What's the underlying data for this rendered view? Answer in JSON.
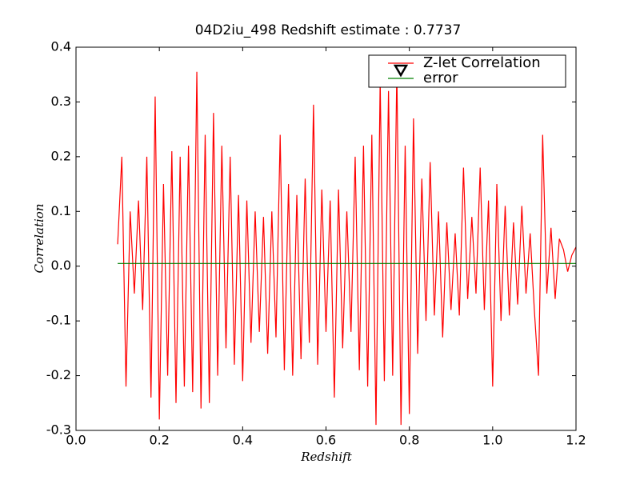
{
  "chart_data": {
    "type": "line",
    "title": "04D2iu_498 Redshift estimate : 0.7737",
    "xlabel": "Redshift",
    "ylabel": "Correlation",
    "x": [
      0.1,
      0.11,
      0.12,
      0.13,
      0.14,
      0.15,
      0.16,
      0.17,
      0.18,
      0.19,
      0.2,
      0.21,
      0.22,
      0.23,
      0.24,
      0.25,
      0.26,
      0.27,
      0.28,
      0.29,
      0.3,
      0.31,
      0.32,
      0.33,
      0.34,
      0.35,
      0.36,
      0.37,
      0.38,
      0.39,
      0.4,
      0.41,
      0.42,
      0.43,
      0.44,
      0.45,
      0.46,
      0.47,
      0.48,
      0.49,
      0.5,
      0.51,
      0.52,
      0.53,
      0.54,
      0.55,
      0.56,
      0.57,
      0.58,
      0.59,
      0.6,
      0.61,
      0.62,
      0.63,
      0.64,
      0.65,
      0.66,
      0.67,
      0.68,
      0.69,
      0.7,
      0.71,
      0.72,
      0.73,
      0.74,
      0.75,
      0.76,
      0.77,
      0.78,
      0.79,
      0.8,
      0.81,
      0.82,
      0.83,
      0.84,
      0.85,
      0.86,
      0.87,
      0.88,
      0.89,
      0.9,
      0.91,
      0.92,
      0.93,
      0.94,
      0.95,
      0.96,
      0.97,
      0.98,
      0.99,
      1.0,
      1.01,
      1.02,
      1.03,
      1.04,
      1.05,
      1.06,
      1.07,
      1.08,
      1.09,
      1.1,
      1.11,
      1.12,
      1.13,
      1.14,
      1.15,
      1.16,
      1.17,
      1.18,
      1.19,
      1.2
    ],
    "series": [
      {
        "name": "Z-let Correlation",
        "color": "#ff0000",
        "values": [
          0.04,
          0.2,
          -0.22,
          0.1,
          -0.05,
          0.12,
          -0.08,
          0.2,
          -0.24,
          0.31,
          -0.28,
          0.15,
          -0.2,
          0.21,
          -0.25,
          0.2,
          -0.22,
          0.22,
          -0.23,
          0.355,
          -0.26,
          0.24,
          -0.25,
          0.28,
          -0.2,
          0.22,
          -0.15,
          0.2,
          -0.18,
          0.13,
          -0.21,
          0.12,
          -0.14,
          0.1,
          -0.12,
          0.09,
          -0.16,
          0.1,
          -0.13,
          0.24,
          -0.19,
          0.15,
          -0.2,
          0.13,
          -0.17,
          0.16,
          -0.14,
          0.295,
          -0.18,
          0.14,
          -0.12,
          0.12,
          -0.24,
          0.14,
          -0.15,
          0.1,
          -0.12,
          0.2,
          -0.19,
          0.22,
          -0.22,
          0.24,
          -0.29,
          0.34,
          -0.21,
          0.32,
          -0.2,
          0.36,
          -0.29,
          0.22,
          -0.27,
          0.27,
          -0.16,
          0.16,
          -0.1,
          0.19,
          -0.09,
          0.1,
          -0.13,
          0.08,
          -0.08,
          0.06,
          -0.09,
          0.18,
          -0.06,
          0.09,
          -0.05,
          0.18,
          -0.08,
          0.12,
          -0.22,
          0.15,
          -0.1,
          0.11,
          -0.09,
          0.08,
          -0.07,
          0.11,
          -0.05,
          0.06,
          -0.08,
          -0.2,
          0.24,
          -0.05,
          0.07,
          -0.06,
          0.05,
          0.03,
          -0.01,
          0.02,
          0.035
        ]
      },
      {
        "name": "error",
        "color": "#008000",
        "x": [
          0.1,
          1.2
        ],
        "values": [
          0.005,
          0.005
        ]
      }
    ],
    "xlim": [
      0,
      1.2
    ],
    "ylim": [
      -0.3,
      0.4
    ],
    "xticks": [
      {
        "value": 0,
        "label": "0.0"
      },
      0.2,
      0.4,
      0.6,
      0.8,
      {
        "value": 1,
        "label": "1.0"
      },
      1.2
    ],
    "yticks": [
      -0.3,
      -0.2,
      -0.1,
      {
        "value": 0,
        "label": "0.0"
      },
      0.1,
      0.2,
      0.3,
      0.4
    ],
    "legend": "upper right"
  }
}
